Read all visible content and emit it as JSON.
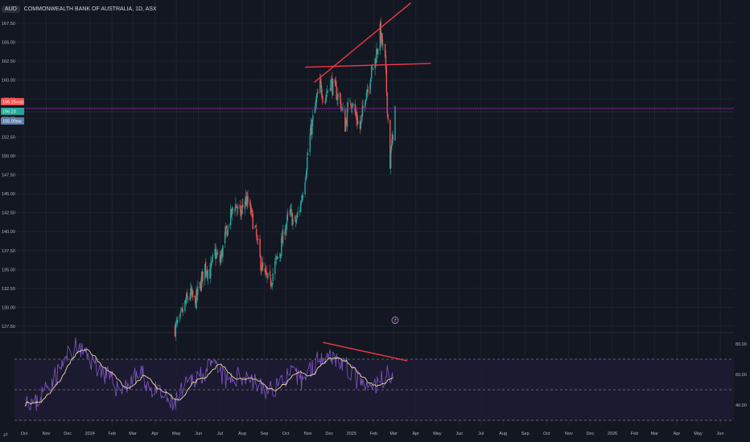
{
  "header": {
    "symbol": "AUD",
    "title": "COMMONWEALTH BANK OF AUSTRALIA, 1D, ASX"
  },
  "colors": {
    "background": "#131722",
    "grid": "#1e222d",
    "up": "#26a69a",
    "down": "#ef5350",
    "trendline": "#f23645",
    "rsi_line": "#7e57c2",
    "rsi_ma": "#f0d9a8",
    "rsi_band_fill": "#1f1b33",
    "price_line": "#9c27b0"
  },
  "price_badges": [
    {
      "label": "156.25",
      "tag": "AUD",
      "color": "#ef5350"
    },
    {
      "label": "156.23",
      "tag": "",
      "color": "#26a69a"
    },
    {
      "label": "155.00",
      "tag": "Bid",
      "color": "#5d7fa8"
    }
  ],
  "marker_icon": "flag-icon",
  "scale_toggle": "⇄",
  "chart_data": [
    {
      "type": "candlestick",
      "title": "COMMONWEALTH BANK OF AUSTRALIA, 1D, ASX",
      "ylim": [
        125.8,
        168.8
      ],
      "y_ticks": [
        "127.50",
        "130.00",
        "132.50",
        "135.00",
        "137.50",
        "140.00",
        "142.50",
        "145.00",
        "147.50",
        "150.00",
        "152.50",
        "155.00",
        "157.50",
        "160.00",
        "162.50",
        "165.00",
        "167.50"
      ],
      "x_ticks": [
        "Oct",
        "Nov",
        "Dec",
        "2024",
        "Feb",
        "Mar",
        "Apr",
        "May",
        "Jun",
        "Jul",
        "Aug",
        "Sep",
        "Oct",
        "Nov",
        "Dec",
        "2025",
        "Feb",
        "Mar",
        "Apr",
        "May",
        "Jun",
        "Jul",
        "Aug",
        "Sep",
        "Oct",
        "Nov",
        "Dec",
        "2026",
        "Feb",
        "Mar",
        "Apr",
        "May",
        "Jun"
      ],
      "x_start": "2023-10-01",
      "x_end": "2026-06-20",
      "close_points": [
        [
          "2024-04-29",
          127.3
        ],
        [
          "2024-05-06",
          128.2
        ],
        [
          "2024-05-13",
          130.4
        ],
        [
          "2024-05-20",
          131.8
        ],
        [
          "2024-05-27",
          130.6
        ],
        [
          "2024-06-03",
          132.8
        ],
        [
          "2024-06-10",
          135.4
        ],
        [
          "2024-06-17",
          134.6
        ],
        [
          "2024-06-24",
          137.2
        ],
        [
          "2024-07-01",
          136.0
        ],
        [
          "2024-07-08",
          139.2
        ],
        [
          "2024-07-15",
          141.6
        ],
        [
          "2024-07-22",
          143.8
        ],
        [
          "2024-07-29",
          142.0
        ],
        [
          "2024-08-05",
          144.4
        ],
        [
          "2024-08-12",
          143.0
        ],
        [
          "2024-08-19",
          140.2
        ],
        [
          "2024-08-26",
          136.2
        ],
        [
          "2024-09-02",
          134.0
        ],
        [
          "2024-09-09",
          133.2
        ],
        [
          "2024-09-16",
          135.6
        ],
        [
          "2024-09-23",
          137.4
        ],
        [
          "2024-09-30",
          140.6
        ],
        [
          "2024-10-07",
          142.4
        ],
        [
          "2024-10-14",
          141.0
        ],
        [
          "2024-10-21",
          143.2
        ],
        [
          "2024-10-28",
          147.4
        ],
        [
          "2024-11-04",
          152.6
        ],
        [
          "2024-11-11",
          156.4
        ],
        [
          "2024-11-18",
          159.2
        ],
        [
          "2024-11-25",
          157.6
        ],
        [
          "2024-12-02",
          159.8
        ],
        [
          "2024-12-09",
          158.6
        ],
        [
          "2024-12-16",
          157.4
        ],
        [
          "2024-12-23",
          154.0
        ],
        [
          "2024-12-30",
          157.8
        ],
        [
          "2025-01-06",
          155.6
        ],
        [
          "2025-01-13",
          153.6
        ],
        [
          "2025-01-20",
          158.0
        ],
        [
          "2025-01-27",
          160.4
        ],
        [
          "2025-02-03",
          162.6
        ],
        [
          "2025-02-10",
          166.4
        ],
        [
          "2025-02-17",
          162.4
        ],
        [
          "2025-02-24",
          149.0
        ],
        [
          "2025-03-03",
          156.2
        ]
      ],
      "last_price": 156.25,
      "annotations": [
        {
          "name": "rising-wedge-line",
          "points": [
            [
              "2024-11-10",
              159.7
            ],
            [
              "2025-03-25",
              170.2
            ]
          ]
        },
        {
          "name": "horizontal-resistance-line",
          "points": [
            [
              "2024-10-28",
              161.7
            ],
            [
              "2025-04-22",
              162.2
            ]
          ]
        }
      ]
    },
    {
      "type": "line",
      "title": "RSI",
      "ylim": [
        33,
        85
      ],
      "y_ticks": [
        "40.00",
        "60.00",
        "80.00"
      ],
      "bands": [
        30,
        50,
        70
      ],
      "series": [
        {
          "points": [
            [
              "2023-10-01",
              47
            ],
            [
              "2023-10-16",
              40
            ],
            [
              "2023-11-01",
              52
            ],
            [
              "2023-11-16",
              60
            ],
            [
              "2023-12-01",
              72
            ],
            [
              "2023-12-13",
              78
            ],
            [
              "2023-12-28",
              72
            ],
            [
              "2024-01-12",
              65
            ],
            [
              "2024-01-27",
              58
            ],
            [
              "2024-02-11",
              50
            ],
            [
              "2024-02-26",
              55
            ],
            [
              "2024-03-12",
              61
            ],
            [
              "2024-03-27",
              50
            ],
            [
              "2024-04-11",
              46
            ],
            [
              "2024-04-26",
              40
            ],
            [
              "2024-05-11",
              50
            ],
            [
              "2024-05-26",
              58
            ],
            [
              "2024-06-10",
              62
            ],
            [
              "2024-06-25",
              65
            ],
            [
              "2024-07-10",
              55
            ],
            [
              "2024-07-25",
              58
            ],
            [
              "2024-08-09",
              60
            ],
            [
              "2024-08-24",
              52
            ],
            [
              "2024-09-08",
              48
            ],
            [
              "2024-09-23",
              56
            ],
            [
              "2024-10-08",
              60
            ],
            [
              "2024-10-23",
              56
            ],
            [
              "2024-11-07",
              65
            ],
            [
              "2024-11-22",
              74
            ],
            [
              "2024-12-07",
              72
            ],
            [
              "2024-12-22",
              66
            ],
            [
              "2025-01-06",
              58
            ],
            [
              "2025-01-21",
              50
            ],
            [
              "2025-02-05",
              52
            ],
            [
              "2025-02-20",
              62
            ],
            [
              "2025-03-01",
              58
            ]
          ]
        }
      ],
      "annotations": [
        {
          "name": "rsi-divergence-line",
          "points": [
            [
              "2024-11-22",
              81
            ],
            [
              "2025-03-20",
              69
            ]
          ]
        }
      ]
    }
  ]
}
